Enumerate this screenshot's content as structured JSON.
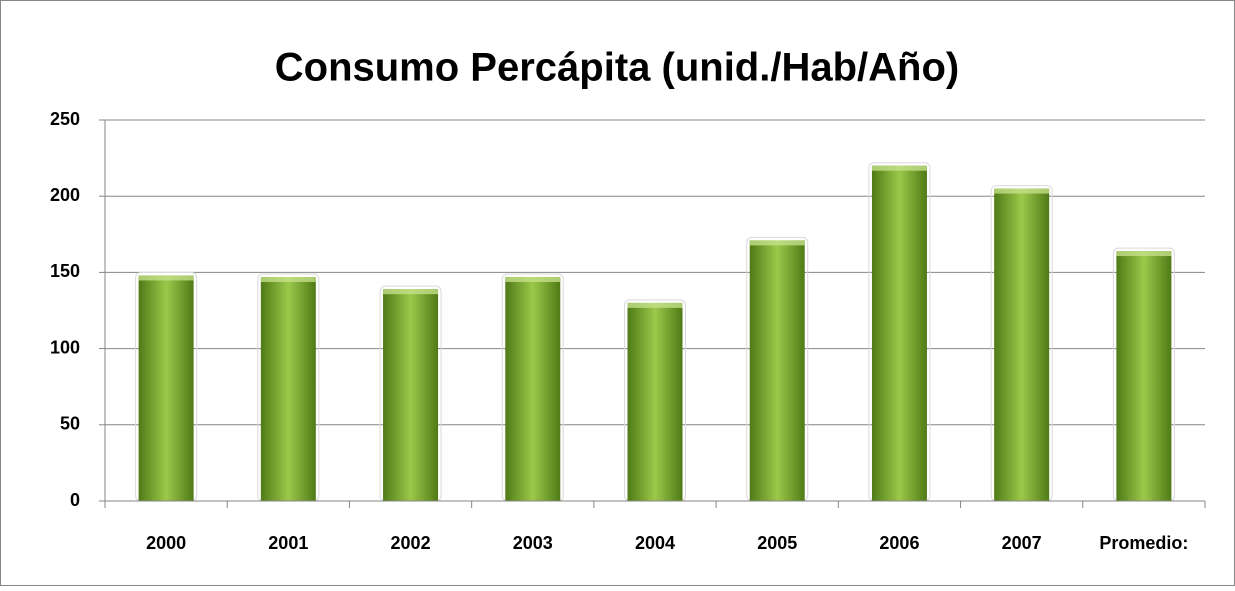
{
  "chart_data": {
    "type": "bar",
    "title": "Consumo Percápita (unid./Hab/Año)",
    "categories": [
      "2000",
      "2001",
      "2002",
      "2003",
      "2004",
      "2005",
      "2006",
      "2007",
      "Promedio:"
    ],
    "values": [
      148,
      147,
      139,
      147,
      130,
      171,
      220,
      205,
      164
    ],
    "color": "#9bc94a",
    "ylim": [
      0,
      250
    ],
    "yticks": [
      0,
      50,
      100,
      150,
      200,
      250
    ],
    "grid": true
  }
}
